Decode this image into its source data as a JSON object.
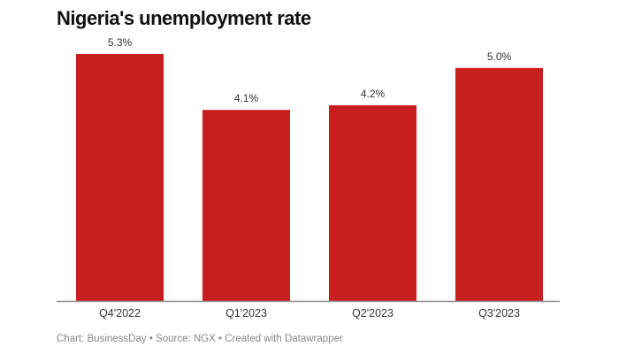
{
  "chart_data": {
    "type": "bar",
    "title": "Nigeria's unemployment rate",
    "categories": [
      "Q4'2022",
      "Q1'2023",
      "Q2'2023",
      "Q3'2023"
    ],
    "values": [
      5.3,
      4.1,
      4.2,
      5.0
    ],
    "data_labels": [
      "5.3%",
      "4.1%",
      "4.2%",
      "5.0%"
    ],
    "xlabel": "",
    "ylabel": "",
    "ylim": [
      0,
      5.3
    ],
    "grid": false,
    "bar_color": "#c81e1e"
  },
  "footer": "Chart: BusinessDay • Source: NGX • Created with Datawrapper"
}
